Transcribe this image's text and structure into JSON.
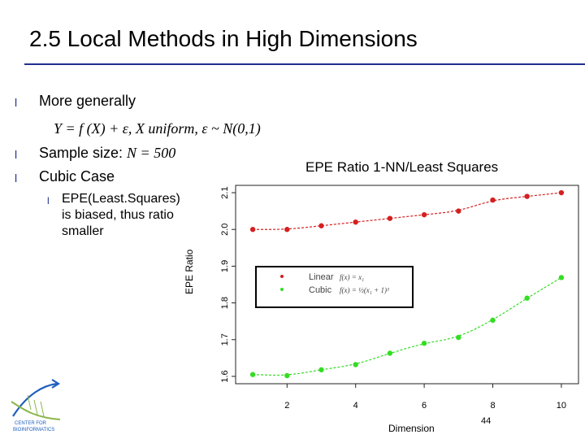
{
  "slide": {
    "title": "2.5 Local Methods in High Dimensions",
    "bullets": [
      {
        "marker": "l",
        "text": "More generally"
      },
      {
        "marker": "l",
        "text_prefix": "Sample size: ",
        "text_math": "N = 500"
      },
      {
        "marker": "l",
        "text": "Cubic Case"
      }
    ],
    "equation": "Y = f (X) + ε,   X uniform,  ε ~ N(0,1)",
    "sub_bullet": {
      "marker": "l",
      "lines": [
        "EPE(Least.Squares)",
        "is biased, thus ratio",
        "smaller"
      ]
    },
    "page_number": "44",
    "logo_text": [
      "CENTER FOR",
      "BIOINFORMATICS"
    ]
  },
  "chart_data": {
    "type": "scatter",
    "title": "EPE Ratio 1-NN/Least Squares",
    "xlabel": "Dimension",
    "ylabel": "EPE Ratio",
    "xlim": [
      0.5,
      10.5
    ],
    "ylim": [
      1.58,
      2.12
    ],
    "xticks": [
      "2",
      "4",
      "6",
      "8",
      "10"
    ],
    "yticks": [
      "1.6",
      "1.7",
      "1.8",
      "1.9",
      "2.0",
      "2.1"
    ],
    "x": [
      1,
      2,
      3,
      4,
      5,
      6,
      7,
      8,
      9,
      10
    ],
    "series": [
      {
        "name": "Linear",
        "formula": "f(x) = x₁",
        "color": "#d42020",
        "values": [
          2.0,
          2.0,
          2.01,
          2.02,
          2.03,
          2.04,
          2.05,
          2.08,
          2.09,
          2.1
        ]
      },
      {
        "name": "Cubic",
        "formula": "f(x) = ½(x₁ + 1)³",
        "color": "#33dd22",
        "values": [
          1.605,
          1.602,
          1.618,
          1.632,
          1.663,
          1.69,
          1.706,
          1.753,
          1.813,
          1.869
        ]
      }
    ],
    "legend": "upper-middle"
  }
}
